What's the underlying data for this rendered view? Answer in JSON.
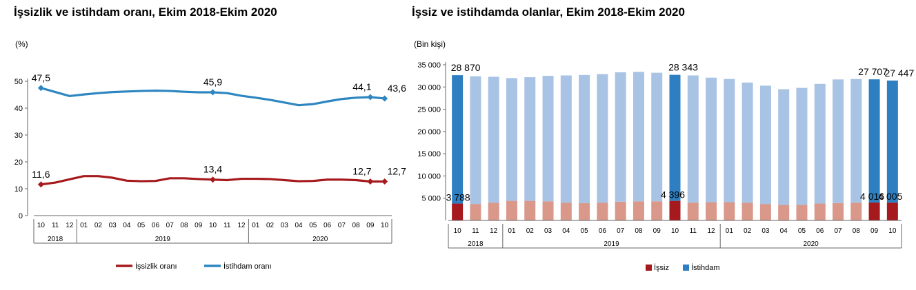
{
  "chart_data": [
    {
      "type": "line",
      "title": "İşsizlik ve istihdam oranı, Ekim 2018-Ekim 2020",
      "ylabel": "(%)",
      "ylim": [
        0,
        50
      ],
      "yticks": [
        0,
        10,
        20,
        30,
        40,
        50
      ],
      "months": [
        "10",
        "11",
        "12",
        "01",
        "02",
        "03",
        "04",
        "05",
        "06",
        "07",
        "08",
        "09",
        "10",
        "11",
        "12",
        "01",
        "02",
        "03",
        "04",
        "05",
        "06",
        "07",
        "08",
        "09",
        "10"
      ],
      "year_groups": [
        {
          "label": "2018",
          "count": 3
        },
        {
          "label": "2019",
          "count": 12
        },
        {
          "label": "2020",
          "count": 10
        }
      ],
      "grid": false,
      "legend_position": "bottom",
      "series": [
        {
          "name": "İşsizlik oranı",
          "color": "#A6191C",
          "values": [
            11.6,
            12.3,
            13.5,
            14.7,
            14.7,
            14.1,
            13.0,
            12.8,
            12.9,
            13.9,
            13.9,
            13.6,
            13.4,
            13.2,
            13.7,
            13.7,
            13.6,
            13.2,
            12.8,
            12.9,
            13.4,
            13.4,
            13.2,
            12.7,
            12.7
          ],
          "labels": [
            {
              "index": 0,
              "text": "11,6"
            },
            {
              "index": 12,
              "text": "13,4"
            },
            {
              "index": 23,
              "text": "12,7"
            },
            {
              "index": 24,
              "text": "12,7"
            }
          ]
        },
        {
          "name": "İstihdam oranı",
          "color": "#2E86C1",
          "values": [
            47.5,
            46.0,
            44.5,
            45.1,
            45.6,
            46.0,
            46.2,
            46.4,
            46.5,
            46.4,
            46.1,
            45.9,
            45.9,
            45.6,
            44.6,
            43.9,
            43.1,
            42.1,
            41.1,
            41.5,
            42.5,
            43.4,
            43.9,
            44.1,
            43.6
          ],
          "labels": [
            {
              "index": 0,
              "text": "47,5"
            },
            {
              "index": 12,
              "text": "45,9"
            },
            {
              "index": 23,
              "text": "44,1"
            },
            {
              "index": 24,
              "text": "43,6"
            }
          ]
        }
      ]
    },
    {
      "type": "bar",
      "title": "İşsiz ve istihdamda olanlar, Ekim 2018-Ekim 2020",
      "ylabel": "(Bin kişi)",
      "ylim": [
        0,
        35000
      ],
      "yticks": [
        5000,
        10000,
        15000,
        20000,
        25000,
        30000,
        35000
      ],
      "ytick_labels": [
        "5 000",
        "10 000",
        "15 000",
        "20 000",
        "25 000",
        "30 000",
        "35 000"
      ],
      "months": [
        "10",
        "11",
        "12",
        "01",
        "02",
        "03",
        "04",
        "05",
        "06",
        "07",
        "08",
        "09",
        "10",
        "11",
        "12",
        "01",
        "02",
        "03",
        "04",
        "05",
        "06",
        "07",
        "08",
        "09",
        "10"
      ],
      "year_groups": [
        {
          "label": "2018",
          "count": 3
        },
        {
          "label": "2019",
          "count": 12
        },
        {
          "label": "2020",
          "count": 10
        }
      ],
      "highlight_indices": [
        0,
        12,
        23,
        24
      ],
      "legend_position": "bottom",
      "series": [
        {
          "name": "İşsiz",
          "color": "#A6191C",
          "light_color": "#D9988A",
          "values": [
            3788,
            3700,
            4000,
            4400,
            4400,
            4300,
            4000,
            3900,
            4000,
            4200,
            4300,
            4300,
            4396,
            4000,
            4100,
            4100,
            4000,
            3700,
            3500,
            3500,
            3800,
            3900,
            4000,
            4016,
            4005
          ],
          "labels": [
            {
              "index": 0,
              "text": "3 788"
            },
            {
              "index": 12,
              "text": "4 396"
            },
            {
              "index": 23,
              "text": "4 016"
            },
            {
              "index": 24,
              "text": "4 005"
            }
          ]
        },
        {
          "name": "İstihdam",
          "color": "#2E7FC2",
          "light_color": "#A9C3E5",
          "values": [
            28870,
            28700,
            28300,
            27600,
            27800,
            28200,
            28600,
            28800,
            28900,
            29100,
            29100,
            28900,
            28343,
            28600,
            28000,
            27700,
            27000,
            26600,
            26000,
            26300,
            26900,
            27800,
            27800,
            27707,
            27447
          ],
          "labels": [
            {
              "index": 0,
              "text": "28 870"
            },
            {
              "index": 12,
              "text": "28 343"
            },
            {
              "index": 23,
              "text": "27 707"
            },
            {
              "index": 24,
              "text": "27 447"
            }
          ]
        }
      ]
    }
  ]
}
